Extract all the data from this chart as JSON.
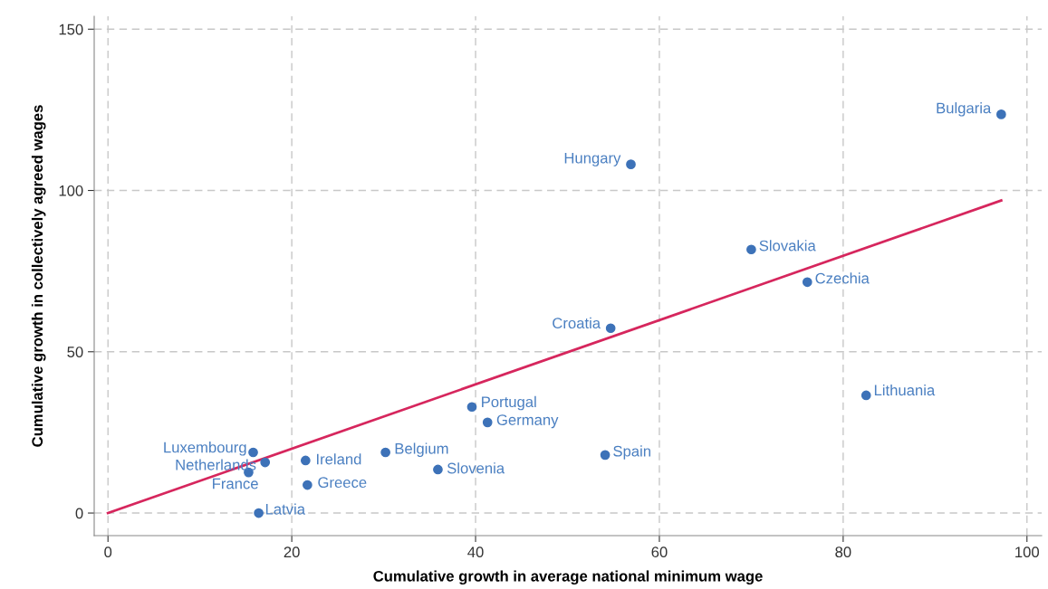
{
  "chart_data": {
    "type": "scatter",
    "xlabel": "Cumulative growth in average national minimum wage",
    "ylabel": "Cumulative growth in collectively agreed wages",
    "xlim": [
      -1.5,
      101.6
    ],
    "ylim": [
      -7,
      154
    ],
    "xticks": [
      0,
      20,
      40,
      60,
      80,
      100
    ],
    "yticks": [
      0,
      50,
      100,
      150
    ],
    "grid": true,
    "marker": "circle",
    "series": [
      {
        "color": "#3d72b8",
        "x": [
          97.2,
          56.9,
          70.0,
          76.1,
          54.7,
          82.5,
          39.6,
          41.3,
          54.1,
          30.2,
          35.9,
          21.5,
          21.7,
          15.8,
          17.1,
          15.3,
          16.4
        ],
        "values": [
          123.6,
          108.1,
          81.7,
          71.6,
          57.3,
          36.5,
          32.9,
          28.1,
          18.0,
          18.8,
          13.5,
          16.3,
          8.7,
          18.8,
          15.7,
          12.6,
          0.0
        ]
      },
      {
        "type": "line",
        "color": "#d6265d",
        "x": [
          0,
          97.2
        ],
        "values": [
          0,
          96.9
        ],
        "line_style": "solid",
        "marker": "none"
      }
    ],
    "annotations": [
      {
        "text": "Bulgaria",
        "x": 97.2,
        "y": 123.6
      },
      {
        "text": "Hungary",
        "x": 56.9,
        "y": 108.1
      },
      {
        "text": "Slovakia",
        "x": 70.0,
        "y": 81.7
      },
      {
        "text": "Czechia",
        "x": 76.1,
        "y": 71.6
      },
      {
        "text": "Croatia",
        "x": 54.7,
        "y": 57.3
      },
      {
        "text": "Lithuania",
        "x": 82.5,
        "y": 36.5
      },
      {
        "text": "Portugal",
        "x": 39.6,
        "y": 32.9
      },
      {
        "text": "Germany",
        "x": 41.3,
        "y": 28.1
      },
      {
        "text": "Spain",
        "x": 54.1,
        "y": 18.0
      },
      {
        "text": "Belgium",
        "x": 30.2,
        "y": 18.8
      },
      {
        "text": "Slovenia",
        "x": 35.9,
        "y": 13.5
      },
      {
        "text": "Ireland",
        "x": 21.5,
        "y": 16.3
      },
      {
        "text": "Greece",
        "x": 21.7,
        "y": 8.7
      },
      {
        "text": "Luxembourg",
        "x": 15.8,
        "y": 18.8
      },
      {
        "text": "Netherlands",
        "x": 17.1,
        "y": 15.7
      },
      {
        "text": "France",
        "x": 15.3,
        "y": 12.6
      },
      {
        "text": "Latvia",
        "x": 16.4,
        "y": 0.0
      }
    ]
  }
}
